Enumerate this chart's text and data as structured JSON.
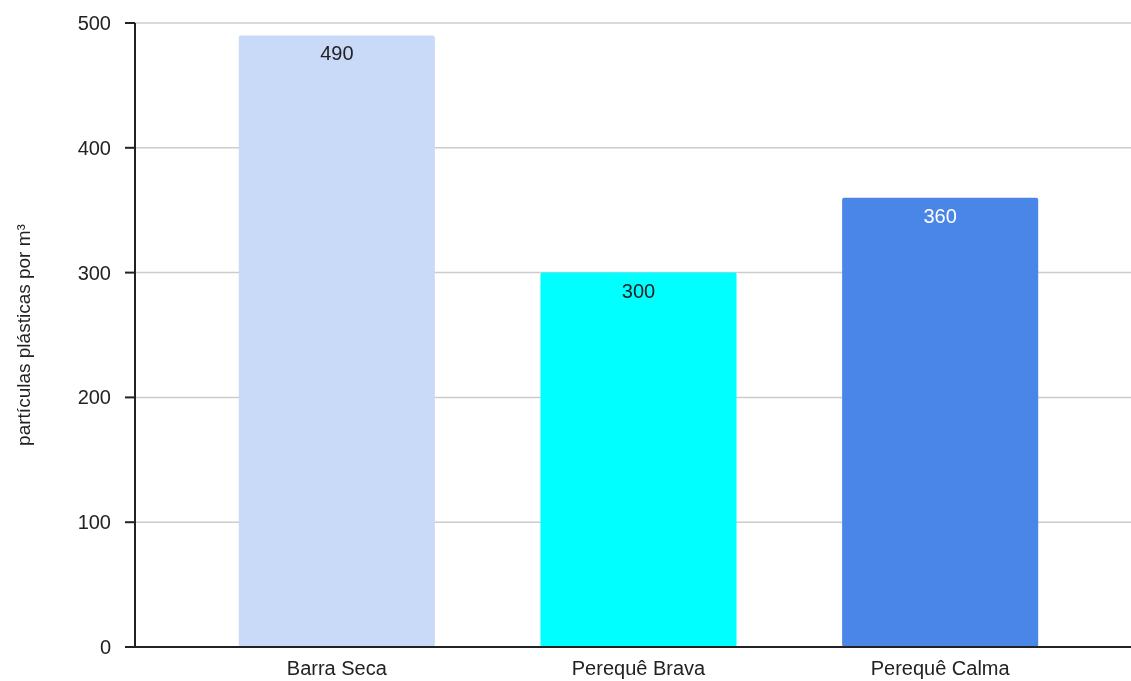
{
  "chart_data": {
    "type": "bar",
    "ylabel": "partículas plásticas por m³",
    "categories": [
      "Barra Seca",
      "Perequê Brava",
      "Perequê Calma"
    ],
    "values": [
      490,
      300,
      360
    ],
    "colors": [
      "#c9daf8",
      "#00ffff",
      "#4a86e8"
    ],
    "ylim": [
      0,
      500
    ],
    "yticks": [
      0,
      100,
      200,
      300,
      400,
      500
    ],
    "grid": true,
    "data_labels": true
  }
}
